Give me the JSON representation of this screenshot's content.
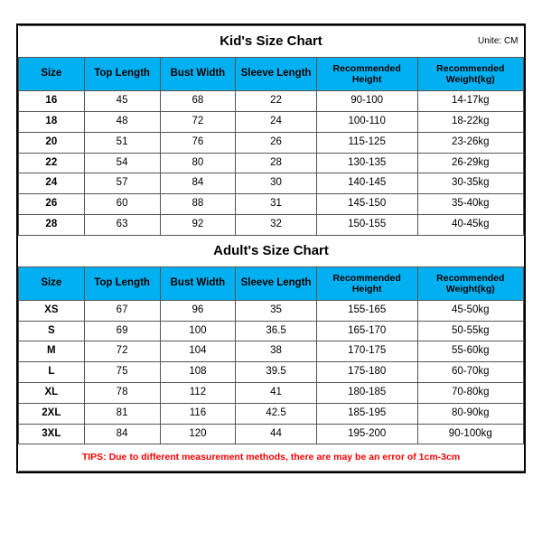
{
  "unit_label": "Unite: CM",
  "kids": {
    "title": "Kid's Size Chart",
    "columns": [
      "Size",
      "Top Length",
      "Bust Width",
      "Sleeve Length",
      "Recommended Height",
      "Recommended Weight(kg)"
    ],
    "rows": [
      [
        "16",
        "45",
        "68",
        "22",
        "90-100",
        "14-17kg"
      ],
      [
        "18",
        "48",
        "72",
        "24",
        "100-110",
        "18-22kg"
      ],
      [
        "20",
        "51",
        "76",
        "26",
        "115-125",
        "23-26kg"
      ],
      [
        "22",
        "54",
        "80",
        "28",
        "130-135",
        "26-29kg"
      ],
      [
        "24",
        "57",
        "84",
        "30",
        "140-145",
        "30-35kg"
      ],
      [
        "26",
        "60",
        "88",
        "31",
        "145-150",
        "35-40kg"
      ],
      [
        "28",
        "63",
        "92",
        "32",
        "150-155",
        "40-45kg"
      ]
    ]
  },
  "adults": {
    "title": "Adult's Size Chart",
    "columns": [
      "Size",
      "Top Length",
      "Bust Width",
      "Sleeve Length",
      "Recommended Height",
      "Recommended Weight(kg)"
    ],
    "rows": [
      [
        "XS",
        "67",
        "96",
        "35",
        "155-165",
        "45-50kg"
      ],
      [
        "S",
        "69",
        "100",
        "36.5",
        "165-170",
        "50-55kg"
      ],
      [
        "M",
        "72",
        "104",
        "38",
        "170-175",
        "55-60kg"
      ],
      [
        "L",
        "75",
        "108",
        "39.5",
        "175-180",
        "60-70kg"
      ],
      [
        "XL",
        "78",
        "112",
        "41",
        "180-185",
        "70-80kg"
      ],
      [
        "2XL",
        "81",
        "116",
        "42.5",
        "185-195",
        "80-90kg"
      ],
      [
        "3XL",
        "84",
        "120",
        "44",
        "195-200",
        "90-100kg"
      ]
    ]
  },
  "tips": "TIPS: Due to different measurement methods, there are may be an error of 1cm-3cm",
  "style": {
    "header_bg": "#00b0f0",
    "border_color": "#555555",
    "outer_border": "#000000",
    "tips_color": "#ff0000",
    "col_widths_pct": [
      13,
      15,
      15,
      16,
      20,
      21
    ]
  }
}
